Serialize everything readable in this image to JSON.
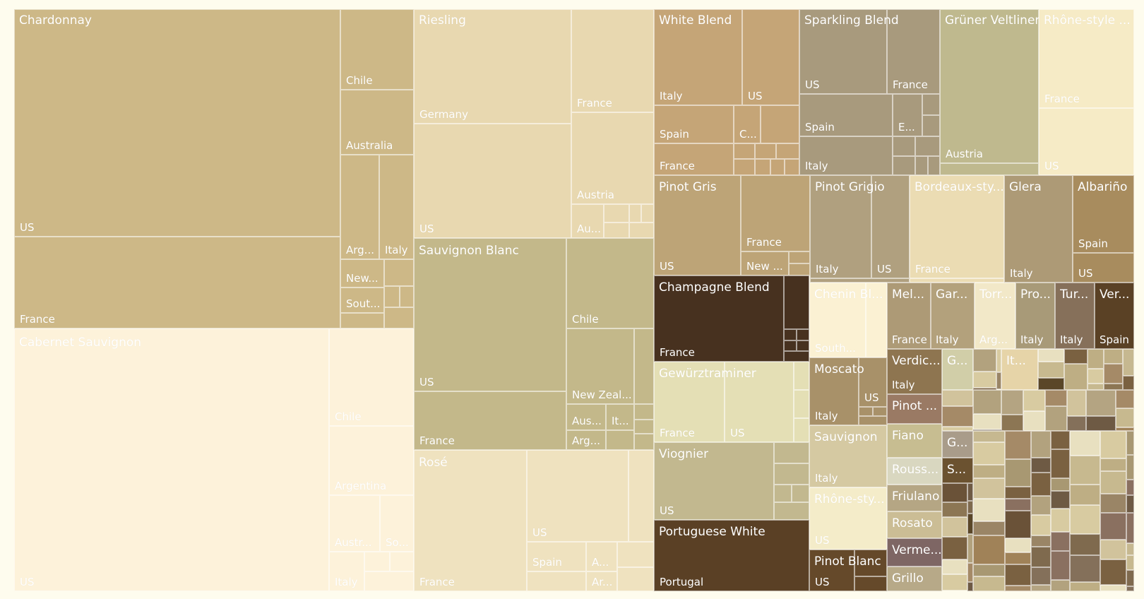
{
  "chart_data": {
    "type": "treemap",
    "title": "",
    "colors": {
      "Chardonnay": "#cdb887",
      "Cabernet Sauvignon": "#fdf2da",
      "Riesling": "#e8d8b0",
      "Sauvignon Blanc": "#c3b88a",
      "Rosé": "#efe2bf",
      "White Blend": "#c5a577",
      "Sparkling Blend": "#a89a7d",
      "Grüner Veltliner": "#bfb98e",
      "Rhône-style": "#f6ebc6",
      "Pinot Gris": "#bda477",
      "Pinot Grigio": "#b0a07f",
      "Bordeaux-style": "#ebdcb3",
      "Glera": "#ad9a76",
      "Albariño": "#a88c5e",
      "Champagne Blend": "#47311f",
      "Gewürztraminer": "#e4dfb5",
      "Viognier": "#c2b88f",
      "Portuguese White": "#5a4025",
      "Chenin Blanc": "#fbf1d3",
      "Moscato": "#a89169",
      "Sauvignon": "#d5c9a2",
      "Rhône-style 2": "#f4ecc9",
      "Pinot Blanc": "#65492a",
      "small": [
        "#6e5a44",
        "#7a6141",
        "#b2a27e",
        "#a89872",
        "#a58a67",
        "#a08258",
        "#8c7654",
        "#c6b890",
        "#d8cba1",
        "#e8e0c0",
        "#8a7060",
        "#5a4628",
        "#b4a482",
        "#c7b98f",
        "#7f6a4e",
        "#9a8566",
        "#6a5238",
        "#d1c39c",
        "#84705a",
        "#beae84"
      ]
    },
    "groups": [
      {
        "name": "Chardonnay",
        "label": "Chardonnay",
        "children": [
          {
            "name": "US"
          },
          {
            "name": "France"
          },
          {
            "name": "Chile"
          },
          {
            "name": "Australia"
          },
          {
            "name": "Arg..."
          },
          {
            "name": "Italy"
          },
          {
            "name": "New..."
          },
          {
            "name": "Sout..."
          }
        ]
      },
      {
        "name": "Cabernet Sauvignon",
        "label": "Cabernet Sauvignon",
        "children": [
          {
            "name": "US"
          },
          {
            "name": "Chile"
          },
          {
            "name": "Argentina"
          },
          {
            "name": "Austr..."
          },
          {
            "name": "So..."
          },
          {
            "name": "Italy"
          }
        ]
      },
      {
        "name": "Riesling",
        "label": "Riesling",
        "children": [
          {
            "name": "Germany"
          },
          {
            "name": "US"
          },
          {
            "name": "France"
          },
          {
            "name": "Austria"
          },
          {
            "name": "Au..."
          }
        ]
      },
      {
        "name": "Sauvignon Blanc",
        "label": "Sauvignon Blanc",
        "children": [
          {
            "name": "US"
          },
          {
            "name": "France"
          },
          {
            "name": "Chile"
          },
          {
            "name": "New Zeal..."
          },
          {
            "name": "Aus..."
          },
          {
            "name": "It..."
          },
          {
            "name": "Arg..."
          }
        ]
      },
      {
        "name": "Rosé",
        "label": "Rosé",
        "children": [
          {
            "name": "France"
          },
          {
            "name": "US"
          },
          {
            "name": "Spain"
          },
          {
            "name": "A..."
          },
          {
            "name": "Ar..."
          }
        ]
      },
      {
        "name": "White Blend",
        "label": "White Blend",
        "children": [
          {
            "name": "Italy"
          },
          {
            "name": "US"
          },
          {
            "name": "Spain"
          },
          {
            "name": "C..."
          },
          {
            "name": "France"
          }
        ]
      },
      {
        "name": "Sparkling Blend",
        "label": "Sparkling Blend",
        "children": [
          {
            "name": "US"
          },
          {
            "name": "France"
          },
          {
            "name": "Spain"
          },
          {
            "name": "E..."
          },
          {
            "name": "Italy"
          }
        ]
      },
      {
        "name": "Grüner Veltliner",
        "label": "Grüner Veltliner",
        "children": [
          {
            "name": "Austria"
          }
        ]
      },
      {
        "name": "Rhône-style",
        "label": "Rhône-style ...",
        "children": [
          {
            "name": "France"
          },
          {
            "name": "US"
          }
        ]
      },
      {
        "name": "Pinot Gris",
        "label": "Pinot Gris",
        "children": [
          {
            "name": "US"
          },
          {
            "name": "France"
          },
          {
            "name": "New ..."
          }
        ]
      },
      {
        "name": "Pinot Grigio",
        "label": "Pinot Grigio",
        "children": [
          {
            "name": "Italy"
          },
          {
            "name": "US"
          }
        ]
      },
      {
        "name": "Bordeaux-style",
        "label": "Bordeaux-sty...",
        "children": [
          {
            "name": "France"
          }
        ]
      },
      {
        "name": "Glera",
        "label": "Glera",
        "children": [
          {
            "name": "Italy"
          }
        ]
      },
      {
        "name": "Albariño",
        "label": "Albariño",
        "children": [
          {
            "name": "Spain"
          },
          {
            "name": "US"
          }
        ]
      },
      {
        "name": "Champagne Blend",
        "label": "Champagne Blend",
        "children": [
          {
            "name": "France"
          }
        ]
      },
      {
        "name": "Gewürztraminer",
        "label": "Gewürztraminer",
        "children": [
          {
            "name": "France"
          },
          {
            "name": "US"
          }
        ]
      },
      {
        "name": "Viognier",
        "label": "Viognier",
        "children": [
          {
            "name": "US"
          }
        ]
      },
      {
        "name": "Portuguese White",
        "label": "Portuguese White",
        "children": [
          {
            "name": "Portugal"
          }
        ]
      },
      {
        "name": "Chenin Blanc",
        "label": "Chenin Bl...",
        "children": [
          {
            "name": "South..."
          }
        ]
      },
      {
        "name": "Moscato",
        "label": "Moscato",
        "children": [
          {
            "name": "Italy"
          },
          {
            "name": "US"
          }
        ]
      },
      {
        "name": "Sauvignon",
        "label": "Sauvignon",
        "children": [
          {
            "name": "Italy"
          }
        ]
      },
      {
        "name": "Rhône-style 2",
        "label": "Rhône-sty...",
        "children": [
          {
            "name": "US"
          }
        ]
      },
      {
        "name": "Pinot Blanc",
        "label": "Pinot Blanc",
        "children": [
          {
            "name": "US"
          }
        ]
      },
      {
        "name": "Melon",
        "label": "Mel...",
        "children": [
          {
            "name": "France"
          }
        ]
      },
      {
        "name": "Garnacha",
        "label": "Gar...",
        "children": [
          {
            "name": "Italy"
          }
        ]
      },
      {
        "name": "Torrontés",
        "label": "Torr...",
        "children": [
          {
            "name": "Arg..."
          }
        ]
      },
      {
        "name": "Prosecco",
        "label": "Pro...",
        "children": [
          {
            "name": "Italy"
          }
        ]
      },
      {
        "name": "Turbiana",
        "label": "Tur...",
        "children": [
          {
            "name": "Italy"
          }
        ]
      },
      {
        "name": "Verdejo",
        "label": "Ver...",
        "children": [
          {
            "name": "Spain"
          }
        ]
      },
      {
        "name": "Verdicchio",
        "label": "Verdic...",
        "children": [
          {
            "name": "Italy"
          }
        ]
      },
      {
        "name": "Pinot Bianco",
        "label": "Pinot ...",
        "children": []
      },
      {
        "name": "Fiano",
        "label": "Fiano",
        "children": []
      },
      {
        "name": "Roussanne",
        "label": "Rouss...",
        "children": []
      },
      {
        "name": "Friulano",
        "label": "Friulano",
        "children": []
      },
      {
        "name": "Rosato",
        "label": "Rosato",
        "children": []
      },
      {
        "name": "Vermentino",
        "label": "Verme...",
        "children": []
      },
      {
        "name": "Grillo",
        "label": "Grillo",
        "children": []
      },
      {
        "name": "G1",
        "label": "G...",
        "children": []
      },
      {
        "name": "G2",
        "label": "G...",
        "children": []
      },
      {
        "name": "S1",
        "label": "S...",
        "children": []
      },
      {
        "name": "It1",
        "label": "It...",
        "children": []
      }
    ]
  }
}
